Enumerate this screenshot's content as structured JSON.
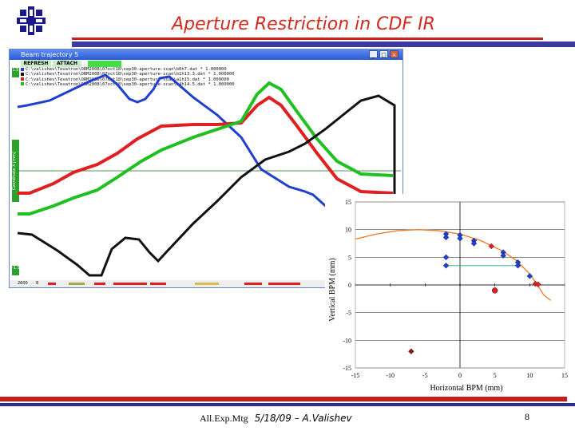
{
  "slide": {
    "title": "Aperture Restriction in CDF IR",
    "footer_meeting": "All.Exp.Mtg",
    "footer_author": "5/18/09  – A.Valishev",
    "page_number": "8",
    "colors": {
      "title": "#d42a1e",
      "bar_red": "#cc2222",
      "bar_blue": "#3a3aa0"
    },
    "logo": "fermilab-logo"
  },
  "window": {
    "title": "Beam trajectory 5",
    "buttons": {
      "minimize": "_",
      "maximize": "□",
      "close": "×"
    },
    "toolbar": {
      "refresh": "REFRESH",
      "attach": "ATTACH"
    },
    "legend": [
      {
        "text": "C:\\valishev\\Tevatron\\ORM2008\\07oct18\\sep30-aperture-scan\\b0h7.dat * 1.000000",
        "color": "#1f3fd0"
      },
      {
        "text": "C:\\valishev\\Tevatron\\ORM2008\\07oct18\\sep30-aperture-scan\\b1h13.3.dat * 1.000000",
        "color": "#111111"
      },
      {
        "text": "C:\\valishev\\Tevatron\\ORM2008\\07oct18\\sep30-aperture-scan\\a1h15.dat * 1.000000",
        "color": "#d02020"
      },
      {
        "text": "C:\\valishev\\Tevatron\\ORM2008\\07oct18\\sep30-aperture-scan\\a4h14.5.dat * 1.000000",
        "color": "#20c020"
      }
    ],
    "side_top": "1.5",
    "side_mid": "Coordinate X [mm]",
    "side_bottom": "-1.5",
    "status_left": "2600",
    "status_right": "8"
  },
  "chart_data": {
    "type": "scatter",
    "xlabel": "Horizontal BPM (mm)",
    "ylabel": "Vertical BPM (mm)",
    "xlim": [
      -15,
      15
    ],
    "ylim": [
      -15,
      15
    ],
    "xticks": [
      -15,
      -10,
      -5,
      0,
      5,
      10,
      15
    ],
    "yticks": [
      -15,
      -10,
      -5,
      0,
      5,
      10,
      15
    ],
    "grid": "horizontal",
    "series": [
      {
        "marker": "diamond",
        "color": "#1f3fd0",
        "points": [
          [
            -2,
            9.2
          ],
          [
            -2,
            8.6
          ],
          [
            0,
            9
          ],
          [
            0,
            8.4
          ],
          [
            2,
            8
          ],
          [
            2,
            7.5
          ],
          [
            6.2,
            5.9
          ],
          [
            6.2,
            5.3
          ],
          [
            8.3,
            4.1
          ],
          [
            8.3,
            3.5
          ],
          [
            10,
            1.6
          ],
          [
            -2,
            5
          ],
          [
            -2,
            3.5
          ]
        ]
      },
      {
        "marker": "diamond",
        "color": "#e02020",
        "points": [
          [
            4.5,
            7
          ],
          [
            10.8,
            0.2
          ],
          [
            11.2,
            0.1
          ]
        ]
      },
      {
        "marker": "circle",
        "color": "#e02020",
        "points": [
          [
            5,
            -1
          ]
        ]
      },
      {
        "marker": "diamond",
        "color": "#8b1a1a",
        "points": [
          [
            -7,
            -12
          ]
        ]
      }
    ],
    "fit_curve": {
      "color": "#f07820",
      "points": [
        [
          -15,
          8.3
        ],
        [
          -12,
          9.2
        ],
        [
          -9,
          9.8
        ],
        [
          -6,
          10
        ],
        [
          -3,
          9.8
        ],
        [
          0,
          9.2
        ],
        [
          3,
          8
        ],
        [
          6,
          6.2
        ],
        [
          8,
          4.5
        ],
        [
          10,
          2
        ],
        [
          11,
          0.2
        ],
        [
          12,
          -1.8
        ],
        [
          13,
          -2.8
        ]
      ]
    },
    "guide_line": {
      "color": "#30b0a0",
      "points": [
        [
          -2,
          3.5
        ],
        [
          8.3,
          3.5
        ]
      ]
    }
  }
}
